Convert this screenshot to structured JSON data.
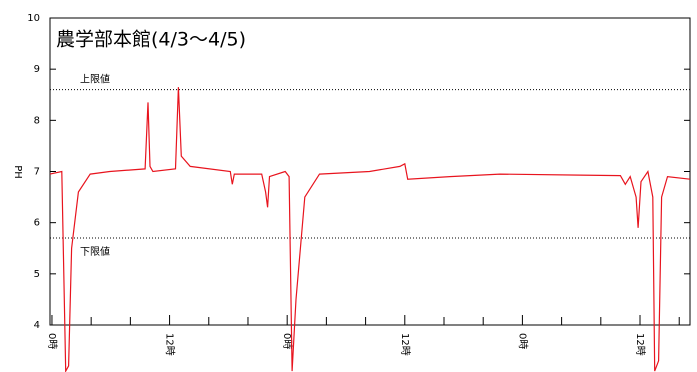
{
  "chart_data": {
    "type": "line",
    "title": "農学部本館(4/3〜4/5)",
    "y_label": "PH",
    "xlim": [
      -0.2,
      65.1
    ],
    "ylim": [
      4,
      10
    ],
    "yticks": [
      4,
      5,
      6,
      7,
      8,
      9,
      10
    ],
    "xticks": [
      {
        "value": 0,
        "label": "0時"
      },
      {
        "value": 12,
        "label": "12時"
      },
      {
        "value": 24,
        "label": "0時"
      },
      {
        "value": 36,
        "label": "12時"
      },
      {
        "value": 48,
        "label": "0時"
      },
      {
        "value": 60,
        "label": "12時"
      }
    ],
    "xminor_ticks": [
      4,
      8,
      16,
      20,
      28,
      32,
      40,
      44,
      52,
      56,
      64
    ],
    "limits": [
      {
        "label": "上限値",
        "value": 8.6
      },
      {
        "label": "下限値",
        "value": 5.7
      }
    ],
    "series": [
      {
        "color": "#e8141e",
        "x": [
          -0.2,
          1.0,
          1.4,
          1.7,
          2.0,
          2.7,
          3.9,
          5.9,
          9.5,
          9.8,
          10.0,
          10.3,
          12.6,
          12.9,
          13.2,
          14.1,
          18.2,
          18.4,
          18.6,
          21.4,
          21.8,
          22.0,
          22.2,
          23.8,
          24.2,
          24.5,
          24.9,
          25.8,
          27.3,
          32.4,
          35.5,
          36.0,
          36.3,
          40.6,
          45.7,
          53.9,
          58.0,
          58.5,
          59.0,
          59.6,
          59.8,
          60.1,
          60.8,
          61.3,
          61.5,
          61.9,
          62.2,
          62.8,
          65.1
        ],
        "values": [
          6.95,
          7.0,
          3.1,
          3.2,
          5.5,
          6.6,
          6.95,
          7.0,
          7.05,
          8.35,
          7.1,
          7.0,
          7.05,
          8.65,
          7.3,
          7.1,
          7.0,
          6.75,
          6.95,
          6.95,
          6.6,
          6.3,
          6.9,
          7.0,
          6.9,
          3.1,
          4.5,
          6.5,
          6.95,
          7.0,
          7.1,
          7.15,
          6.85,
          6.9,
          6.95,
          6.93,
          6.92,
          6.75,
          6.9,
          6.5,
          5.9,
          6.8,
          7.0,
          6.5,
          3.1,
          3.3,
          6.5,
          6.9,
          6.85
        ]
      }
    ]
  }
}
